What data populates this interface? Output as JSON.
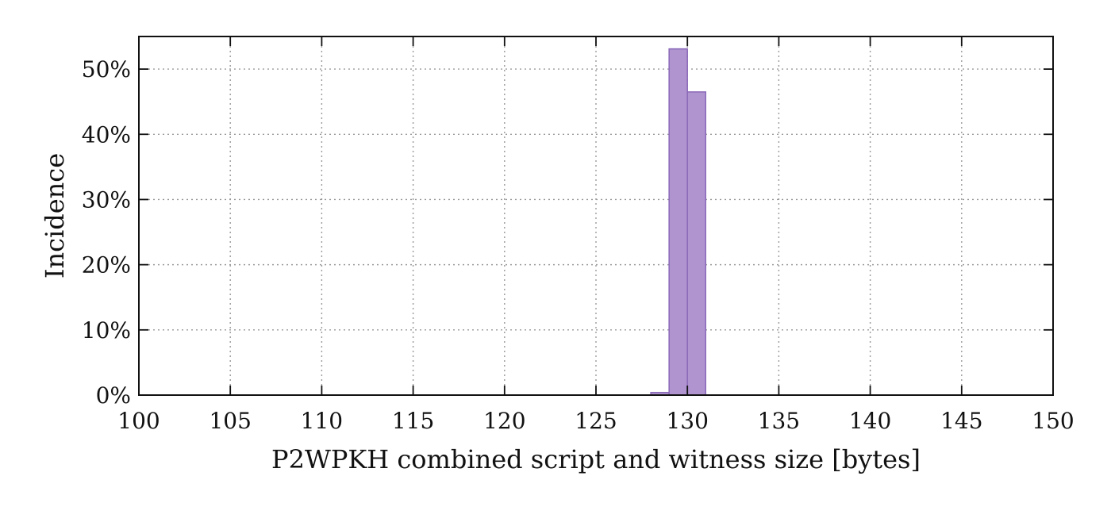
{
  "chart_data": {
    "type": "bar",
    "title": "",
    "xlabel": "P2WPKH combined script and witness size [bytes]",
    "ylabel": "Incidence",
    "xlim": [
      100,
      150
    ],
    "ylim": [
      0,
      55
    ],
    "x_ticks": [
      "100",
      "105",
      "110",
      "115",
      "120",
      "125",
      "130",
      "135",
      "140",
      "145",
      "150"
    ],
    "y_ticks": [
      "0%",
      "10%",
      "20%",
      "30%",
      "40%",
      "50%"
    ],
    "grid": true,
    "bar_color": "#b094d0",
    "bars": [
      {
        "bin_start": 128,
        "bin_end": 129,
        "value": 0.4
      },
      {
        "bin_start": 129,
        "bin_end": 130,
        "value": 53.1
      },
      {
        "bin_start": 130,
        "bin_end": 131,
        "value": 46.5
      }
    ]
  }
}
